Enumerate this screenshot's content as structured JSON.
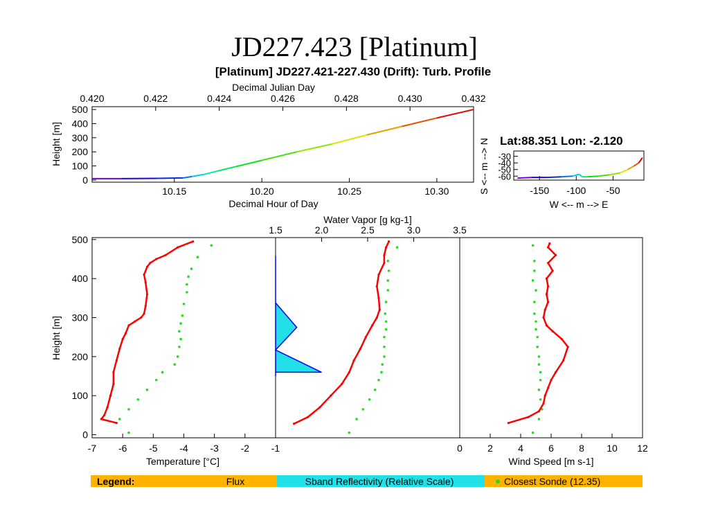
{
  "slide": {
    "title": "JD227.423 [Platinum]"
  },
  "figure": {
    "title": "[Platinum] JD227.421-227.430 (Drift): Turb. Profile",
    "latlon": "Lat:88.351 Lon:  -2.120"
  },
  "legend": {
    "label": "Legend:",
    "flux": "Flux",
    "sband": "Sband Reflectivity (Relative Scale)",
    "sonde": "Closest Sonde (12.35)",
    "colors": {
      "bar": "#ffb300",
      "sband_bg": "#22e0e8",
      "flux": "#ff0000",
      "sband_text": "#0000ff",
      "sonde": "#22dd22"
    }
  },
  "chart_data": [
    {
      "id": "time-height",
      "type": "line",
      "xlabel": "Decimal Hour of Day",
      "x2label": "Decimal Julian Day",
      "ylabel": "Height [m]",
      "xlim": [
        10.103,
        10.321
      ],
      "ylim": [
        -15,
        520
      ],
      "x_ticks": [
        10.15,
        10.2,
        10.25,
        10.3
      ],
      "x_tick_labels": [
        "10.15",
        "10.20",
        "10.25",
        "10.30"
      ],
      "x2lim": [
        0.42,
        0.432
      ],
      "x2_ticks": [
        0.42,
        0.422,
        0.424,
        0.426,
        0.428,
        0.43,
        0.432
      ],
      "x2_tick_labels": [
        "0.420",
        "0.422",
        "0.424",
        "0.426",
        "0.428",
        "0.430",
        "0.432"
      ],
      "y_ticks": [
        0,
        100,
        200,
        300,
        400,
        500
      ],
      "y_tick_labels": [
        "0",
        "100",
        "200",
        "300",
        "400",
        "500"
      ],
      "series": [
        {
          "color_scale": "rainbow",
          "x": [
            10.103,
            10.12,
            10.14,
            10.155,
            10.16,
            10.167,
            10.175,
            10.185,
            10.2,
            10.22,
            10.24,
            10.26,
            10.28,
            10.3,
            10.321
          ],
          "y": [
            10,
            10,
            12,
            15,
            25,
            40,
            65,
            95,
            140,
            200,
            255,
            320,
            380,
            440,
            500
          ]
        }
      ]
    },
    {
      "id": "track",
      "type": "line",
      "xlabel": "W <-- m --> E",
      "ylabel": "S <-- m --> N",
      "xlim": [
        -185,
        -8
      ],
      "ylim": [
        -66,
        -22
      ],
      "x_ticks": [
        -150,
        -100,
        -50
      ],
      "x_tick_labels": [
        "-150",
        "-100",
        "-50"
      ],
      "y_ticks": [
        -30,
        -40,
        -50,
        -60
      ],
      "y_tick_labels": [
        "-30",
        "-40",
        "-50",
        "-60"
      ],
      "series": [
        {
          "color_scale": "rainbow",
          "x": [
            -180,
            -160,
            -140,
            -120,
            -105,
            -96,
            -92,
            -85,
            -70,
            -55,
            -40,
            -30,
            -22,
            -15,
            -10
          ],
          "y": [
            -63,
            -62,
            -62,
            -61,
            -60,
            -57,
            -61,
            -61,
            -60,
            -58,
            -55,
            -50,
            -45,
            -40,
            -32
          ]
        }
      ]
    },
    {
      "id": "temperature",
      "type": "scatter",
      "xlabel": "Temperature [°C]",
      "ylabel": "Height [m]",
      "xlim": [
        -7,
        -1
      ],
      "ylim": [
        -8,
        505
      ],
      "x_ticks": [
        -7,
        -6,
        -5,
        -4,
        -3,
        -2,
        -1
      ],
      "x_tick_labels": [
        "-7",
        "-6",
        "-5",
        "-4",
        "-3",
        "-2",
        "-1"
      ],
      "y_ticks": [
        0,
        100,
        200,
        300,
        400,
        500
      ],
      "y_tick_labels": [
        "0",
        "100",
        "200",
        "300",
        "400",
        "500"
      ],
      "series": [
        {
          "name": "Flux",
          "x": [
            -6.2,
            -6.7,
            -6.6,
            -6.5,
            -6.4,
            -6.3,
            -6.3,
            -6.2,
            -6.1,
            -6.0,
            -5.9,
            -5.8,
            -5.6,
            -5.4,
            -5.3,
            -5.25,
            -5.2,
            -5.25,
            -5.3,
            -5.2,
            -5.1,
            -4.9,
            -4.6,
            -4.2,
            -3.7
          ],
          "y": [
            30,
            40,
            50,
            70,
            100,
            130,
            160,
            190,
            220,
            245,
            260,
            280,
            290,
            300,
            310,
            330,
            360,
            390,
            410,
            430,
            440,
            450,
            460,
            480,
            495
          ]
        },
        {
          "name": "Closest Sonde",
          "x": [
            -5.8,
            -6.1,
            -5.8,
            -5.5,
            -5.2,
            -4.9,
            -4.7,
            -4.3,
            -4.2,
            -4.15,
            -4.1,
            -4.15,
            -4.1,
            -4.05,
            -4.0,
            -3.9,
            -3.9,
            -3.85,
            -3.75,
            -3.55,
            -3.1
          ],
          "y": [
            5,
            40,
            65,
            90,
            115,
            140,
            160,
            180,
            200,
            225,
            245,
            265,
            285,
            305,
            335,
            365,
            385,
            405,
            425,
            455,
            485
          ]
        }
      ]
    },
    {
      "id": "water-vapor",
      "type": "scatter",
      "x2label": "Water Vapor [g kg-1]",
      "x2lim": [
        1.5,
        3.5
      ],
      "x2_ticks": [
        1.5,
        2.0,
        2.5,
        3.0,
        3.5
      ],
      "x2_tick_labels": [
        "1.5",
        "2.0",
        "2.5",
        "3.0",
        "3.5"
      ],
      "ylim": [
        -8,
        505
      ],
      "series": [
        {
          "name": "Flux",
          "x": [
            1.7,
            1.85,
            1.98,
            2.1,
            2.22,
            2.3,
            2.35,
            2.42,
            2.48,
            2.55,
            2.6,
            2.63,
            2.62,
            2.6,
            2.62,
            2.68,
            2.68,
            2.7,
            2.73
          ],
          "y": [
            28,
            45,
            70,
            100,
            130,
            160,
            190,
            220,
            250,
            280,
            300,
            320,
            350,
            380,
            410,
            440,
            460,
            480,
            495
          ]
        },
        {
          "name": "Sband Reflectivity (Relative Scale)",
          "x": [
            1.5,
            1.5,
            2.0,
            1.5,
            1.5,
            1.73,
            1.5,
            1.5
          ],
          "y": [
            150,
            160,
            160,
            217,
            217,
            275,
            338,
            458
          ]
        },
        {
          "name": "Closest Sonde",
          "x": [
            2.3,
            2.38,
            2.45,
            2.52,
            2.58,
            2.62,
            2.65,
            2.66,
            2.68,
            2.68,
            2.68,
            2.7,
            2.7,
            2.69,
            2.7,
            2.72,
            2.72,
            2.73,
            2.72,
            2.82
          ],
          "y": [
            5,
            40,
            65,
            90,
            115,
            140,
            160,
            180,
            200,
            225,
            250,
            270,
            290,
            310,
            340,
            370,
            395,
            420,
            445,
            480
          ]
        }
      ]
    },
    {
      "id": "wind-speed",
      "type": "scatter",
      "xlabel": "Wind Speed [m s-1]",
      "xlim": [
        0,
        12
      ],
      "ylim": [
        -8,
        505
      ],
      "x_ticks": [
        0,
        2,
        4,
        6,
        8,
        10,
        12
      ],
      "x_tick_labels": [
        "0",
        "2",
        "4",
        "6",
        "8",
        "10",
        "12"
      ],
      "series": [
        {
          "name": "Flux",
          "x": [
            3.2,
            4.5,
            5.2,
            5.5,
            5.6,
            5.8,
            6.0,
            6.3,
            6.8,
            7.1,
            6.7,
            6.1,
            5.7,
            5.5,
            5.6,
            5.8,
            5.7,
            5.8,
            5.7,
            6.1,
            5.8,
            6.3,
            5.8,
            5.9
          ],
          "y": [
            30,
            45,
            60,
            80,
            100,
            120,
            140,
            160,
            190,
            225,
            245,
            265,
            280,
            300,
            320,
            340,
            360,
            380,
            400,
            420,
            440,
            460,
            480,
            490
          ]
        },
        {
          "name": "Closest Sonde",
          "x": [
            4.8,
            5.2,
            5.4,
            5.3,
            5.2,
            5.3,
            5.3,
            5.2,
            5.2,
            5.1,
            5.1,
            5.0,
            5.0,
            4.9,
            4.9,
            5.0,
            4.8,
            4.9,
            4.9,
            4.8
          ],
          "y": [
            5,
            40,
            65,
            90,
            115,
            140,
            160,
            180,
            200,
            225,
            250,
            270,
            290,
            310,
            340,
            370,
            395,
            420,
            445,
            485
          ]
        }
      ]
    }
  ]
}
